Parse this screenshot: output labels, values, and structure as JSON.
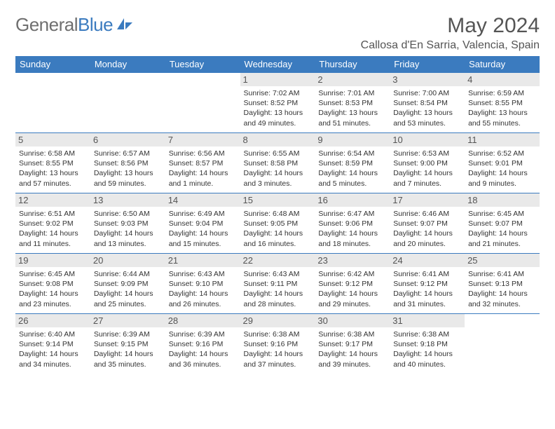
{
  "header": {
    "logo_gray": "General",
    "logo_blue": "Blue",
    "month_title": "May 2024",
    "location": "Callosa d'En Sarria, Valencia, Spain"
  },
  "colors": {
    "brand_blue": "#3b7bbf",
    "logo_gray": "#6f6f6f",
    "text": "#333333",
    "header_text": "#555555",
    "daynum_bg": "#e9e9e9",
    "white": "#ffffff"
  },
  "weekdays": [
    "Sunday",
    "Monday",
    "Tuesday",
    "Wednesday",
    "Thursday",
    "Friday",
    "Saturday"
  ],
  "weeks": [
    [
      {
        "n": "",
        "sunrise": "",
        "sunset": "",
        "daylight": "",
        "empty": true
      },
      {
        "n": "",
        "sunrise": "",
        "sunset": "",
        "daylight": "",
        "empty": true
      },
      {
        "n": "",
        "sunrise": "",
        "sunset": "",
        "daylight": "",
        "empty": true
      },
      {
        "n": "1",
        "sunrise": "Sunrise: 7:02 AM",
        "sunset": "Sunset: 8:52 PM",
        "daylight": "Daylight: 13 hours and 49 minutes."
      },
      {
        "n": "2",
        "sunrise": "Sunrise: 7:01 AM",
        "sunset": "Sunset: 8:53 PM",
        "daylight": "Daylight: 13 hours and 51 minutes."
      },
      {
        "n": "3",
        "sunrise": "Sunrise: 7:00 AM",
        "sunset": "Sunset: 8:54 PM",
        "daylight": "Daylight: 13 hours and 53 minutes."
      },
      {
        "n": "4",
        "sunrise": "Sunrise: 6:59 AM",
        "sunset": "Sunset: 8:55 PM",
        "daylight": "Daylight: 13 hours and 55 minutes."
      }
    ],
    [
      {
        "n": "5",
        "sunrise": "Sunrise: 6:58 AM",
        "sunset": "Sunset: 8:55 PM",
        "daylight": "Daylight: 13 hours and 57 minutes."
      },
      {
        "n": "6",
        "sunrise": "Sunrise: 6:57 AM",
        "sunset": "Sunset: 8:56 PM",
        "daylight": "Daylight: 13 hours and 59 minutes."
      },
      {
        "n": "7",
        "sunrise": "Sunrise: 6:56 AM",
        "sunset": "Sunset: 8:57 PM",
        "daylight": "Daylight: 14 hours and 1 minute."
      },
      {
        "n": "8",
        "sunrise": "Sunrise: 6:55 AM",
        "sunset": "Sunset: 8:58 PM",
        "daylight": "Daylight: 14 hours and 3 minutes."
      },
      {
        "n": "9",
        "sunrise": "Sunrise: 6:54 AM",
        "sunset": "Sunset: 8:59 PM",
        "daylight": "Daylight: 14 hours and 5 minutes."
      },
      {
        "n": "10",
        "sunrise": "Sunrise: 6:53 AM",
        "sunset": "Sunset: 9:00 PM",
        "daylight": "Daylight: 14 hours and 7 minutes."
      },
      {
        "n": "11",
        "sunrise": "Sunrise: 6:52 AM",
        "sunset": "Sunset: 9:01 PM",
        "daylight": "Daylight: 14 hours and 9 minutes."
      }
    ],
    [
      {
        "n": "12",
        "sunrise": "Sunrise: 6:51 AM",
        "sunset": "Sunset: 9:02 PM",
        "daylight": "Daylight: 14 hours and 11 minutes."
      },
      {
        "n": "13",
        "sunrise": "Sunrise: 6:50 AM",
        "sunset": "Sunset: 9:03 PM",
        "daylight": "Daylight: 14 hours and 13 minutes."
      },
      {
        "n": "14",
        "sunrise": "Sunrise: 6:49 AM",
        "sunset": "Sunset: 9:04 PM",
        "daylight": "Daylight: 14 hours and 15 minutes."
      },
      {
        "n": "15",
        "sunrise": "Sunrise: 6:48 AM",
        "sunset": "Sunset: 9:05 PM",
        "daylight": "Daylight: 14 hours and 16 minutes."
      },
      {
        "n": "16",
        "sunrise": "Sunrise: 6:47 AM",
        "sunset": "Sunset: 9:06 PM",
        "daylight": "Daylight: 14 hours and 18 minutes."
      },
      {
        "n": "17",
        "sunrise": "Sunrise: 6:46 AM",
        "sunset": "Sunset: 9:07 PM",
        "daylight": "Daylight: 14 hours and 20 minutes."
      },
      {
        "n": "18",
        "sunrise": "Sunrise: 6:45 AM",
        "sunset": "Sunset: 9:07 PM",
        "daylight": "Daylight: 14 hours and 21 minutes."
      }
    ],
    [
      {
        "n": "19",
        "sunrise": "Sunrise: 6:45 AM",
        "sunset": "Sunset: 9:08 PM",
        "daylight": "Daylight: 14 hours and 23 minutes."
      },
      {
        "n": "20",
        "sunrise": "Sunrise: 6:44 AM",
        "sunset": "Sunset: 9:09 PM",
        "daylight": "Daylight: 14 hours and 25 minutes."
      },
      {
        "n": "21",
        "sunrise": "Sunrise: 6:43 AM",
        "sunset": "Sunset: 9:10 PM",
        "daylight": "Daylight: 14 hours and 26 minutes."
      },
      {
        "n": "22",
        "sunrise": "Sunrise: 6:43 AM",
        "sunset": "Sunset: 9:11 PM",
        "daylight": "Daylight: 14 hours and 28 minutes."
      },
      {
        "n": "23",
        "sunrise": "Sunrise: 6:42 AM",
        "sunset": "Sunset: 9:12 PM",
        "daylight": "Daylight: 14 hours and 29 minutes."
      },
      {
        "n": "24",
        "sunrise": "Sunrise: 6:41 AM",
        "sunset": "Sunset: 9:12 PM",
        "daylight": "Daylight: 14 hours and 31 minutes."
      },
      {
        "n": "25",
        "sunrise": "Sunrise: 6:41 AM",
        "sunset": "Sunset: 9:13 PM",
        "daylight": "Daylight: 14 hours and 32 minutes."
      }
    ],
    [
      {
        "n": "26",
        "sunrise": "Sunrise: 6:40 AM",
        "sunset": "Sunset: 9:14 PM",
        "daylight": "Daylight: 14 hours and 34 minutes."
      },
      {
        "n": "27",
        "sunrise": "Sunrise: 6:39 AM",
        "sunset": "Sunset: 9:15 PM",
        "daylight": "Daylight: 14 hours and 35 minutes."
      },
      {
        "n": "28",
        "sunrise": "Sunrise: 6:39 AM",
        "sunset": "Sunset: 9:16 PM",
        "daylight": "Daylight: 14 hours and 36 minutes."
      },
      {
        "n": "29",
        "sunrise": "Sunrise: 6:38 AM",
        "sunset": "Sunset: 9:16 PM",
        "daylight": "Daylight: 14 hours and 37 minutes."
      },
      {
        "n": "30",
        "sunrise": "Sunrise: 6:38 AM",
        "sunset": "Sunset: 9:17 PM",
        "daylight": "Daylight: 14 hours and 39 minutes."
      },
      {
        "n": "31",
        "sunrise": "Sunrise: 6:38 AM",
        "sunset": "Sunset: 9:18 PM",
        "daylight": "Daylight: 14 hours and 40 minutes."
      },
      {
        "n": "",
        "sunrise": "",
        "sunset": "",
        "daylight": "",
        "empty": true
      }
    ]
  ]
}
